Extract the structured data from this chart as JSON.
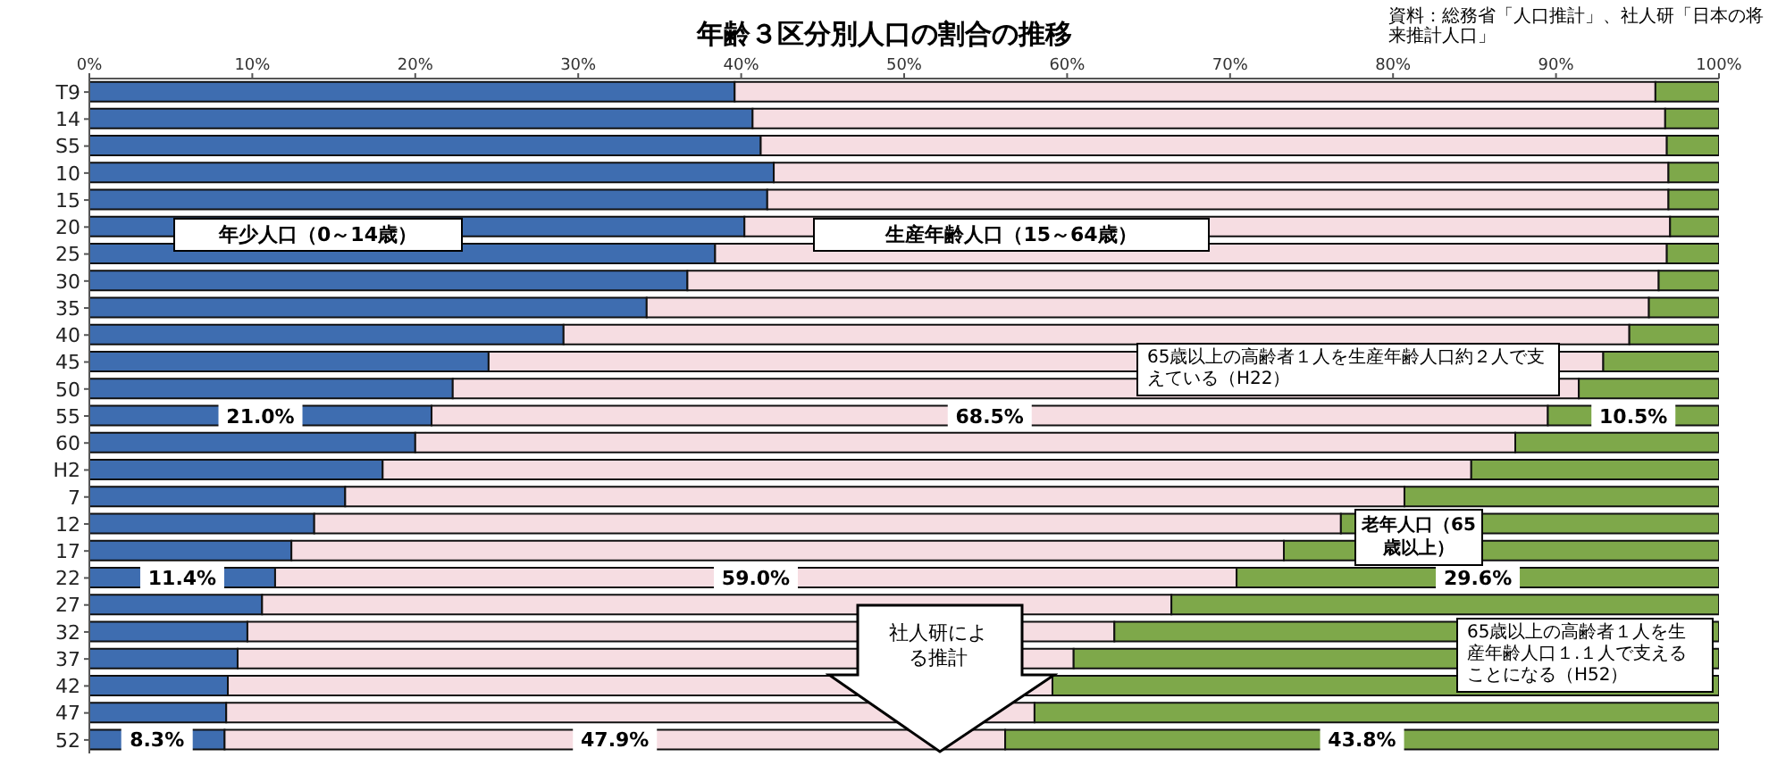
{
  "chart_data": {
    "type": "bar",
    "orientation": "horizontal",
    "stacked": true,
    "title": "年齢３区分別人口の割合の推移",
    "categories": [
      "T9",
      "14",
      "S5",
      "10",
      "15",
      "20",
      "25",
      "30",
      "35",
      "40",
      "45",
      "50",
      "55",
      "60",
      "H2",
      "7",
      "12",
      "17",
      "22",
      "27",
      "32",
      "37",
      "42",
      "47",
      "52"
    ],
    "xlim": [
      0,
      100
    ],
    "xticks": [
      {
        "value": 0,
        "label": "0%"
      },
      {
        "value": 10,
        "label": "10%"
      },
      {
        "value": 20,
        "label": "20%"
      },
      {
        "value": 30,
        "label": "30%"
      },
      {
        "value": 40,
        "label": "40%"
      },
      {
        "value": 50,
        "label": "50%"
      },
      {
        "value": 60,
        "label": "60%"
      },
      {
        "value": 70,
        "label": "70%"
      },
      {
        "value": 80,
        "label": "80%"
      },
      {
        "value": 90,
        "label": "90%"
      },
      {
        "value": 100,
        "label": "100%"
      }
    ],
    "series": [
      {
        "name": "年少人口（0～14歳）",
        "color": "#3e6db0",
        "values": [
          39.6,
          40.7,
          41.2,
          42.0,
          41.6,
          40.2,
          38.4,
          36.7,
          34.2,
          29.1,
          24.5,
          22.3,
          21.0,
          20.0,
          18.0,
          15.7,
          13.8,
          12.4,
          11.4,
          10.6,
          9.7,
          9.1,
          8.5,
          8.4,
          8.3
        ],
        "value_labels": [
          null,
          null,
          null,
          null,
          null,
          null,
          null,
          null,
          null,
          null,
          null,
          null,
          "21.0%",
          null,
          null,
          null,
          null,
          null,
          "11.4%",
          null,
          null,
          null,
          null,
          null,
          "8.3%"
        ]
      },
      {
        "name": "生産年齢人口（15～64歳）",
        "color": "#f6dde2",
        "values": [
          56.5,
          56.0,
          55.6,
          54.9,
          55.3,
          56.8,
          58.4,
          59.6,
          61.5,
          65.4,
          68.4,
          69.1,
          68.5,
          67.5,
          66.8,
          65.0,
          63.0,
          60.9,
          59.0,
          55.8,
          53.2,
          51.3,
          50.6,
          49.6,
          47.9
        ],
        "value_labels": [
          null,
          null,
          null,
          null,
          null,
          null,
          null,
          null,
          null,
          null,
          null,
          null,
          "68.5%",
          null,
          null,
          null,
          null,
          null,
          "59.0%",
          null,
          null,
          null,
          null,
          null,
          "47.9%"
        ]
      },
      {
        "name": "老年人口（65歳以上）",
        "color": "#7ea84a",
        "values": [
          3.9,
          3.3,
          3.2,
          3.1,
          3.1,
          3.0,
          3.2,
          3.7,
          4.3,
          5.5,
          7.1,
          8.6,
          10.5,
          12.5,
          15.2,
          19.3,
          23.2,
          26.7,
          29.6,
          33.6,
          37.1,
          39.6,
          40.9,
          42.0,
          43.8
        ],
        "value_labels": [
          null,
          null,
          null,
          null,
          null,
          null,
          null,
          null,
          null,
          null,
          null,
          null,
          "10.5%",
          null,
          null,
          null,
          null,
          null,
          "29.6%",
          null,
          null,
          null,
          null,
          null,
          "43.8%"
        ]
      }
    ],
    "annotations": [
      "資料：総務省「人口推計」、社人研「日本の将来推計人口」",
      "65歳以上の高齢者１人を生産年齢人口約２人で支えている（H22）",
      "65歳以上の高齢者１人を生産年齢人口１.１人で支えることになる（H52）",
      "社人研による推計"
    ]
  }
}
